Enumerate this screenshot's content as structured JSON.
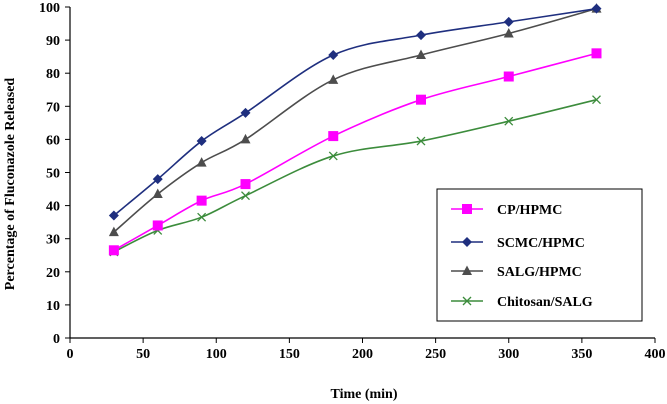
{
  "chart_data": {
    "type": "line",
    "title": "",
    "xlabel": "Time (min)",
    "ylabel": "Percentage of Fluconazole Released",
    "xlim": [
      0,
      400
    ],
    "ylim": [
      0,
      100
    ],
    "xticks": [
      0,
      50,
      100,
      150,
      200,
      250,
      300,
      350,
      400
    ],
    "yticks": [
      0,
      10,
      20,
      30,
      40,
      50,
      60,
      70,
      80,
      90,
      100
    ],
    "grid": false,
    "legend_position": "bottom-right",
    "x": [
      30,
      60,
      90,
      120,
      180,
      240,
      300,
      360
    ],
    "series": [
      {
        "name": "CP/HPMC",
        "color": "#ff00ff",
        "marker": "square",
        "values": [
          26.5,
          34,
          41.5,
          46.5,
          61,
          72,
          79,
          86
        ]
      },
      {
        "name": "SCMC/HPMC",
        "color": "#1f2f7f",
        "marker": "diamond",
        "values": [
          37,
          48,
          59.5,
          68,
          85.5,
          91.5,
          95.5,
          99.5
        ]
      },
      {
        "name": "SALG/HPMC",
        "color": "#4d4d4d",
        "marker": "triangle",
        "values": [
          32,
          43.5,
          53,
          60,
          78,
          85.5,
          92,
          99.5
        ]
      },
      {
        "name": "Chitosan/SALG",
        "color": "#3c8c3c",
        "marker": "x",
        "values": [
          26,
          32.5,
          36.5,
          43,
          55,
          59.5,
          65.5,
          72
        ]
      }
    ]
  }
}
